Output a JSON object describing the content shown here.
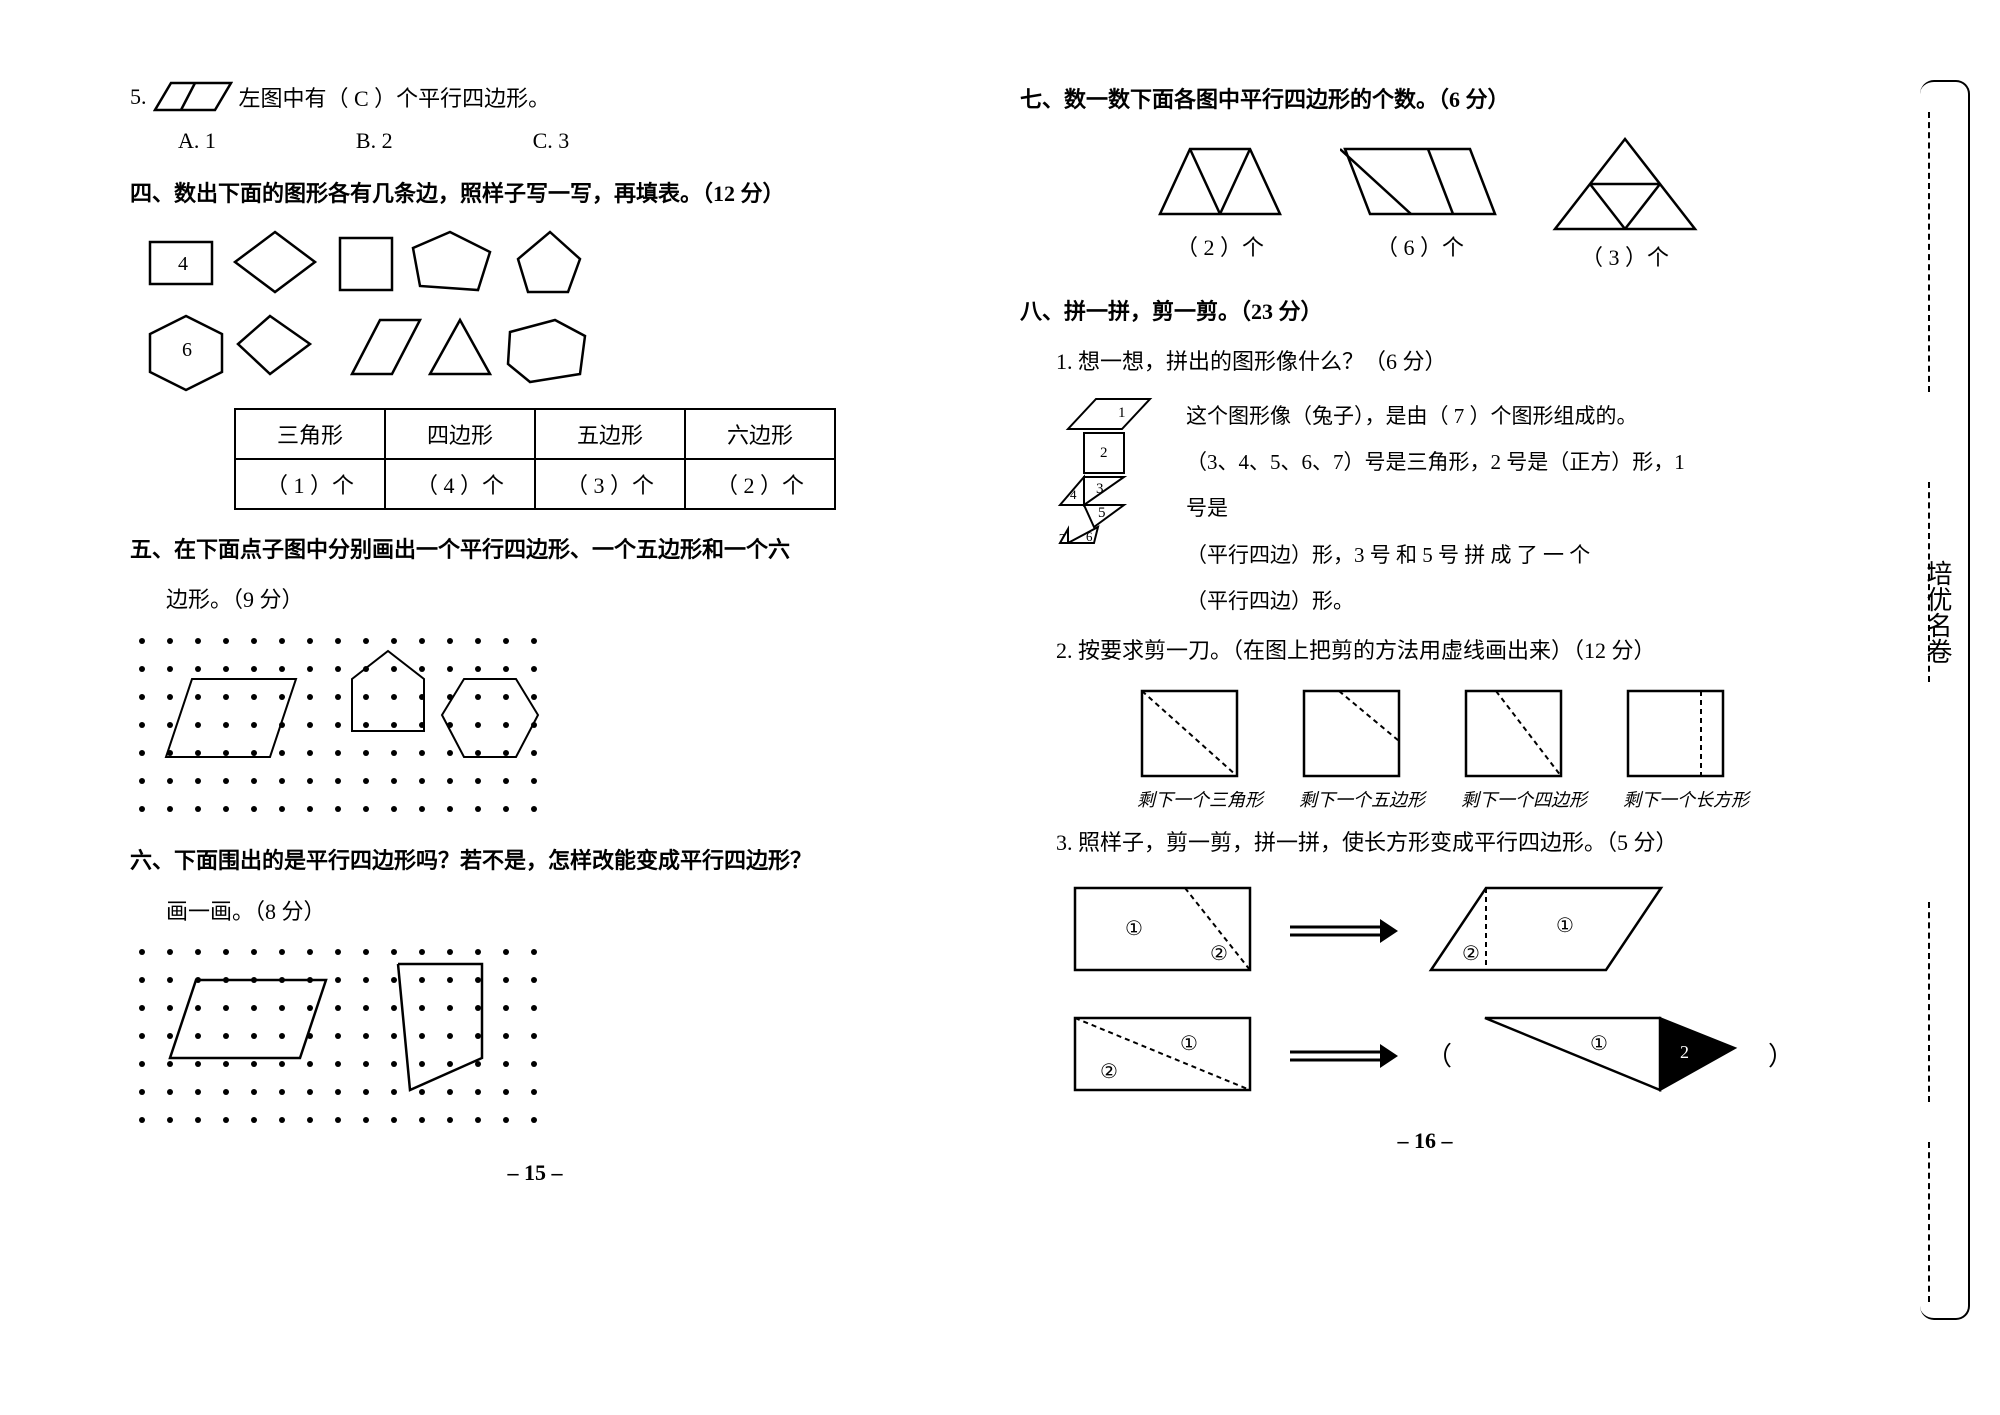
{
  "left": {
    "q5": {
      "num": "5.",
      "text_after": "左图中有（   C   ）个平行四边形。",
      "options": [
        "A. 1",
        "B. 2",
        "C. 3"
      ]
    },
    "s4": {
      "title": "四、数出下面的图形各有几条边，照样子写一写，再填表。（12 分）",
      "labels": [
        "4",
        "6"
      ],
      "headers": [
        "三角形",
        "四边形",
        "五边形",
        "六边形"
      ],
      "cells": [
        "（   1   ）个",
        "（   4   ）个",
        "（   3   ）个",
        "（   2   ）个"
      ]
    },
    "s5": {
      "title": "五、在下面点子图中分别画出一个平行四边形、一个五边形和一个六",
      "title2": "边形。（9 分）"
    },
    "s6": {
      "title": "六、下面围出的是平行四边形吗？若不是，怎样改能变成平行四边形？",
      "title2": "画一画。（8 分）"
    },
    "pagenum": "– 15 –"
  },
  "right": {
    "s7": {
      "title": "七、数一数下面各图中平行四边形的个数。（6 分）",
      "answers": [
        "（   2   ）个",
        "（   6   ）个",
        "（   3   ）个"
      ]
    },
    "s8": {
      "title": "八、拼一拼，剪一剪。（23 分）",
      "q1": {
        "title": "1. 想一想，拼出的图形像什么？（6 分）",
        "line1a": "这个图形像（兔子），是由（   7   ）个图形组成的。",
        "line2": "（3、4、5、6、7）号是三角形，2 号是（正方）形，1 号是",
        "line3": "（平行四边）形，3 号 和 5 号 拼 成 了 一 个",
        "line4": "（平行四边）形。",
        "nums": [
          "1",
          "2",
          "3",
          "4",
          "5",
          "6",
          "7"
        ]
      },
      "q2": {
        "title": "2. 按要求剪一刀。（在图上把剪的方法用虚线画出来）（12 分）",
        "labels": [
          "剩下一个三角形",
          "剩下一个五边形",
          "剩下一个四边形",
          "剩下一个长方形"
        ]
      },
      "q3": {
        "title": "3. 照样子，剪一剪，拼一拼，使长方形变成平行四边形。（5 分）",
        "circ1": "①",
        "circ2": "②"
      }
    },
    "pagenum": "– 16 –"
  },
  "colors": {
    "line": "#000000",
    "bg": "#ffffff"
  }
}
